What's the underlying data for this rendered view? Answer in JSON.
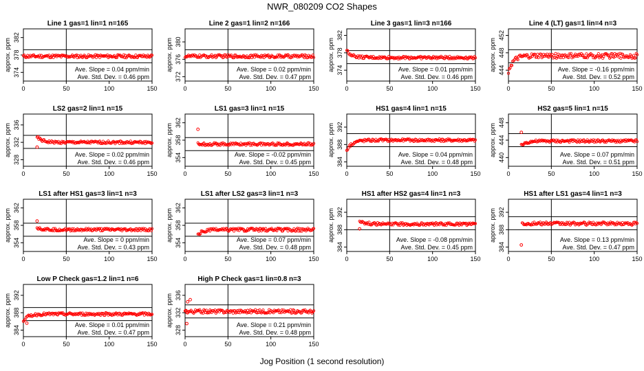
{
  "title": "NWR_080209  CO2 Shapes",
  "xlabel": "Jog Position (1 second resolution)",
  "ylabel": "approx. ppm",
  "colors": {
    "points": "#ff0000",
    "axes": "#000000"
  },
  "xlim": [
    0,
    150
  ],
  "xticks": [
    "0",
    "50",
    "100",
    "150"
  ],
  "chart_data": [
    {
      "type": "scatter",
      "title": "Line 1 gas=1 lin=1 n=165",
      "ylim": [
        372,
        384
      ],
      "yticks": [
        "374",
        "378",
        "382"
      ],
      "hlines": [
        376.2,
        379.2
      ],
      "start_x": 0,
      "y_level": 377.7,
      "noise": 0.35,
      "initial_offset": 0,
      "outliers": [],
      "slope_label": "Ave. Slope =",
      "slope_value": "0.04",
      "slope_unit": "ppm/min",
      "std_label": "Ave. Std. Dev. =",
      "std_value": "0.46",
      "std_unit": "ppm"
    },
    {
      "type": "scatter",
      "title": "Line 2 gas=1 lin=2 n=166",
      "ylim": [
        371,
        383
      ],
      "yticks": [
        "372",
        "376",
        "380"
      ],
      "hlines": [
        375.2,
        378.2
      ],
      "start_x": 0,
      "y_level": 376.7,
      "noise": 0.35,
      "initial_offset": 0,
      "outliers": [],
      "slope_label": "Ave. Slope =",
      "slope_value": "0.02",
      "slope_unit": "ppm/min",
      "std_label": "Ave. Std. Dev. =",
      "std_value": "0.47",
      "std_unit": "ppm"
    },
    {
      "type": "scatter",
      "title": "Line 3 gas=1 lin=3 n=166",
      "ylim": [
        371.5,
        383.5
      ],
      "yticks": [
        "374",
        "378",
        "382"
      ],
      "hlines": [
        375.5,
        378.5
      ],
      "start_x": 0,
      "y_level": 376.9,
      "noise": 0.3,
      "initial_offset": 1.6,
      "outliers": [],
      "slope_label": "Ave. Slope =",
      "slope_value": "0.01",
      "slope_unit": "ppm/min",
      "std_label": "Ave. Std. Dev. =",
      "std_value": "0.46",
      "std_unit": "ppm"
    },
    {
      "type": "scatter",
      "title": "Line 4 (LT) gas=1 lin=4 n=3",
      "ylim": [
        441.5,
        453.5
      ],
      "yticks": [
        "444",
        "448",
        "452"
      ],
      "hlines": [
        445.7,
        448.7
      ],
      "start_x": 0,
      "y_level": 447.3,
      "noise": 0.55,
      "initial_offset": -3.5,
      "outliers": [],
      "slope_label": "Ave. Slope =",
      "slope_value": "-0.16",
      "slope_unit": "ppm/min",
      "std_label": "Ave. Std. Dev. =",
      "std_value": "0.52",
      "std_unit": "ppm"
    },
    {
      "type": "scatter",
      "title": "LS2 gas=2 lin=1 n=15",
      "ylim": [
        326.5,
        338.5
      ],
      "yticks": [
        "328",
        "332",
        "336"
      ],
      "hlines": [
        330.6,
        333.6
      ],
      "start_x": 16,
      "y_level": 332.0,
      "noise": 0.3,
      "initial_offset": 1.2,
      "outliers": [
        [
          16,
          330.9
        ]
      ],
      "slope_label": "Ave. Slope =",
      "slope_value": "0.02",
      "slope_unit": "ppm/min",
      "std_label": "Ave. Std. Dev. =",
      "std_value": "0.46",
      "std_unit": "ppm"
    },
    {
      "type": "scatter",
      "title": "LS1 gas=3 lin=1 n=15",
      "ylim": [
        352,
        364
      ],
      "yticks": [
        "354",
        "358",
        "362"
      ],
      "hlines": [
        355.6,
        358.6
      ],
      "start_x": 15,
      "y_level": 357.1,
      "noise": 0.3,
      "initial_offset": 0,
      "outliers": [
        [
          15,
          360.5
        ]
      ],
      "slope_label": "Ave. Slope =",
      "slope_value": "-0.02",
      "slope_unit": "ppm/min",
      "std_label": "Ave. Std. Dev. =",
      "std_value": "0.45",
      "std_unit": "ppm"
    },
    {
      "type": "scatter",
      "title": "HS1 gas=4 lin=1 n=15",
      "ylim": [
        383,
        395
      ],
      "yticks": [
        "384",
        "388",
        "392"
      ],
      "hlines": [
        387.5,
        390.5
      ],
      "start_x": 0,
      "y_level": 389.0,
      "noise": 0.3,
      "initial_offset": -2.3,
      "outliers": [],
      "slope_label": "Ave. Slope =",
      "slope_value": "0.04",
      "slope_unit": "ppm/min",
      "std_label": "Ave. Std. Dev. =",
      "std_value": "0.48",
      "std_unit": "ppm"
    },
    {
      "type": "scatter",
      "title": "HS2 gas=5 lin=1 n=15",
      "ylim": [
        438,
        450
      ],
      "yticks": [
        "440",
        "444",
        "448"
      ],
      "hlines": [
        442.5,
        445.5
      ],
      "start_x": 15,
      "y_level": 443.8,
      "noise": 0.3,
      "initial_offset": -1.0,
      "outliers": [
        [
          15,
          445.8
        ]
      ],
      "slope_label": "Ave. Slope =",
      "slope_value": "0.07",
      "slope_unit": "ppm/min",
      "std_label": "Ave. Std. Dev. =",
      "std_value": "0.51",
      "std_unit": "ppm"
    },
    {
      "type": "scatter",
      "title": "LS1 after HS1 gas=3 lin=1 n=3",
      "ylim": [
        352,
        364
      ],
      "yticks": [
        "354",
        "358",
        "362"
      ],
      "hlines": [
        355.5,
        358.5
      ],
      "start_x": 16,
      "y_level": 357.0,
      "noise": 0.3,
      "initial_offset": 0.5,
      "outliers": [
        [
          16,
          359.0
        ]
      ],
      "slope_label": "Ave. Slope =",
      "slope_value": "0",
      "slope_unit": "ppm/min",
      "std_label": "Ave. Std. Dev. =",
      "std_value": "0.43",
      "std_unit": "ppm"
    },
    {
      "type": "scatter",
      "title": "LS1 after LS2 gas=3 lin=1 n=3",
      "ylim": [
        352,
        364
      ],
      "yticks": [
        "354",
        "358",
        "362"
      ],
      "hlines": [
        355.5,
        358.5
      ],
      "start_x": 15,
      "y_level": 357.0,
      "noise": 0.35,
      "initial_offset": -1.2,
      "outliers": [],
      "slope_label": "Ave. Slope =",
      "slope_value": "0.07",
      "slope_unit": "ppm/min",
      "std_label": "Ave. Std. Dev. =",
      "std_value": "0.48",
      "std_unit": "ppm"
    },
    {
      "type": "scatter",
      "title": "HS1 after HS2 gas=4 lin=1 n=3",
      "ylim": [
        383,
        395
      ],
      "yticks": [
        "384",
        "388",
        "392"
      ],
      "hlines": [
        388.0,
        391.0
      ],
      "start_x": 15,
      "y_level": 389.3,
      "noise": 0.3,
      "initial_offset": 0.8,
      "outliers": [
        [
          15,
          388.2
        ]
      ],
      "slope_label": "Ave. Slope =",
      "slope_value": "-0.08",
      "slope_unit": "ppm/min",
      "std_label": "Ave. Std. Dev. =",
      "std_value": "0.45",
      "std_unit": "ppm"
    },
    {
      "type": "scatter",
      "title": "HS1 after LS1 gas=4 lin=1 n=3",
      "ylim": [
        383,
        395
      ],
      "yticks": [
        "384",
        "388",
        "392"
      ],
      "hlines": [
        388.0,
        391.0
      ],
      "start_x": 16,
      "y_level": 389.4,
      "noise": 0.35,
      "initial_offset": 0,
      "outliers": [
        [
          15,
          384.5
        ]
      ],
      "slope_label": "Ave. Slope =",
      "slope_value": "0.13",
      "slope_unit": "ppm/min",
      "std_label": "Ave. Std. Dev. =",
      "std_value": "0.47",
      "std_unit": "ppm"
    },
    {
      "type": "scatter",
      "title": "Low P Check gas=1.2 lin=1 n=6",
      "ylim": [
        382.5,
        394.5
      ],
      "yticks": [
        "384",
        "388",
        "392"
      ],
      "hlines": [
        386.2,
        389.2
      ],
      "start_x": 0,
      "y_level": 387.7,
      "noise": 0.3,
      "initial_offset": -1.5,
      "outliers": [
        [
          4,
          385.6
        ]
      ],
      "slope_label": "Ave. Slope =",
      "slope_value": "0.01",
      "slope_unit": "ppm/min",
      "std_label": "Ave. Std. Dev. =",
      "std_value": "0.47",
      "std_unit": "ppm"
    },
    {
      "type": "scatter",
      "title": "High P Check gas=1 lin=0.8 n=3",
      "ylim": [
        326.5,
        338.5
      ],
      "yticks": [
        "328",
        "332",
        "336"
      ],
      "hlines": [
        330.8,
        333.8
      ],
      "start_x": 0,
      "y_level": 332.3,
      "noise": 0.4,
      "initial_offset": 0,
      "outliers": [
        [
          1,
          332.5
        ],
        [
          2,
          329.5
        ],
        [
          3,
          334.5
        ],
        [
          6,
          335.0
        ]
      ],
      "slope_label": "Ave. Slope =",
      "slope_value": "0.21",
      "slope_unit": "ppm/min",
      "std_label": "Ave. Std. Dev. =",
      "std_value": "0.48",
      "std_unit": "ppm"
    }
  ]
}
